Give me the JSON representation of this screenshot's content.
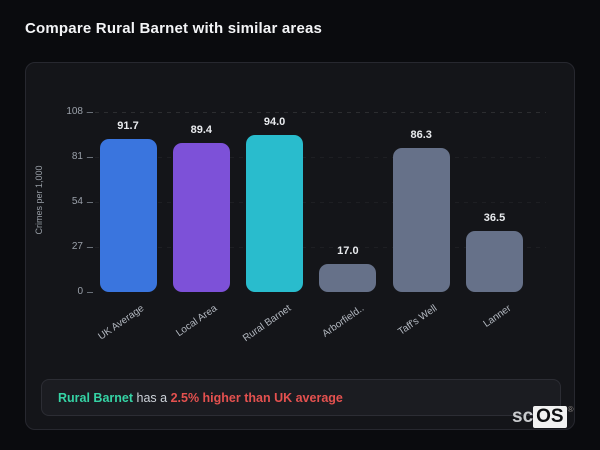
{
  "page": {
    "title": "Compare Rural Barnet with similar areas"
  },
  "chart_data": {
    "type": "bar",
    "title": "Compare Rural Barnet with similar areas",
    "categories": [
      "UK Average",
      "Local Area",
      "Rural Barnet",
      "Arborfield..",
      "Taff's Well",
      "Lanner"
    ],
    "values": [
      91.7,
      89.4,
      94.0,
      17.0,
      86.3,
      36.5
    ],
    "value_labels": [
      "91.7",
      "89.4",
      "94.0",
      "17.0",
      "86.3",
      "36.5"
    ],
    "bar_colors": [
      "#3a75de",
      "#7d51d8",
      "#29bccd",
      "#667189",
      "#667189",
      "#667189"
    ],
    "xlabel": "",
    "ylabel": "Crimes per 1,000",
    "yticks": [
      0,
      27,
      54,
      81,
      108
    ],
    "ylim": [
      0,
      108
    ],
    "grid": "dashed-horizontal",
    "legend": "none"
  },
  "annotation": {
    "segments": [
      {
        "text": "Rural Barnet",
        "color": "#35d3a5",
        "bold": true
      },
      {
        "text": " has a ",
        "color": "#ced3da",
        "bold": false
      },
      {
        "text": "2.5% higher than UK average",
        "color": "#e4514f",
        "bold": true
      }
    ]
  },
  "logo": {
    "prefix": "sc",
    "suffix": "OS",
    "registered": "®"
  },
  "colors": {
    "background": "#0a0b0e",
    "card_background": "#141519",
    "card_border": "#27282f",
    "highlight_blue": "#3a75de",
    "highlight_purple": "#7d51d8",
    "highlight_teal": "#29bccd",
    "neutral_bar": "#667189",
    "positive_accent": "#35d3a5",
    "negative_accent": "#e4514f"
  }
}
